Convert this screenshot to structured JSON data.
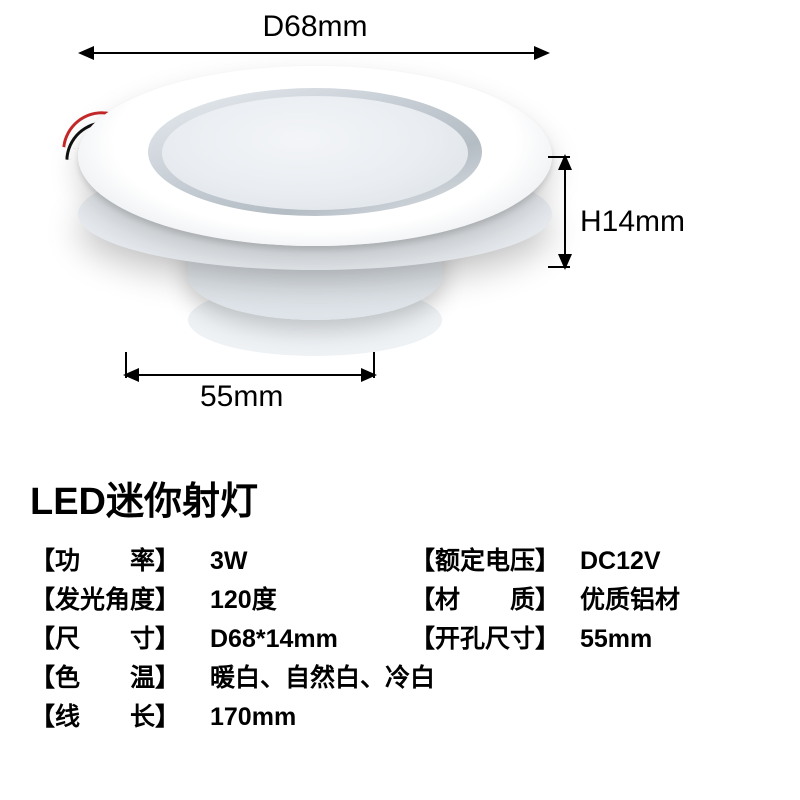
{
  "diagram": {
    "outer_diameter_label": "D68mm",
    "height_label": "H14mm",
    "cutout_label": "55mm",
    "arrow_color": "#000000",
    "wire_colors": {
      "red": "#c62828",
      "black": "#111111"
    },
    "flange_color": "#ffffff",
    "diffuser_color": "#e9edf1"
  },
  "title": "LED迷你射灯",
  "specs": {
    "rows": [
      {
        "label_l": "【功　　率】",
        "value_l": "3W",
        "label_r": "【额定电压】",
        "value_r": "DC12V"
      },
      {
        "label_l": "【发光角度】",
        "value_l": "120度",
        "label_r": "【材　　质】",
        "value_r": "优质铝材"
      },
      {
        "label_l": "【尺　　寸】",
        "value_l": "D68*14mm",
        "label_r": "【开孔尺寸】",
        "value_r": "55mm"
      },
      {
        "label_l": "【色　　温】",
        "value_l": "暖白、自然白、冷白"
      },
      {
        "label_l": "【线　　长】",
        "value_l": "170mm"
      }
    ],
    "title_fontsize": 38,
    "label_fontsize": 25,
    "text_color": "#000000"
  },
  "background_color": "#ffffff"
}
